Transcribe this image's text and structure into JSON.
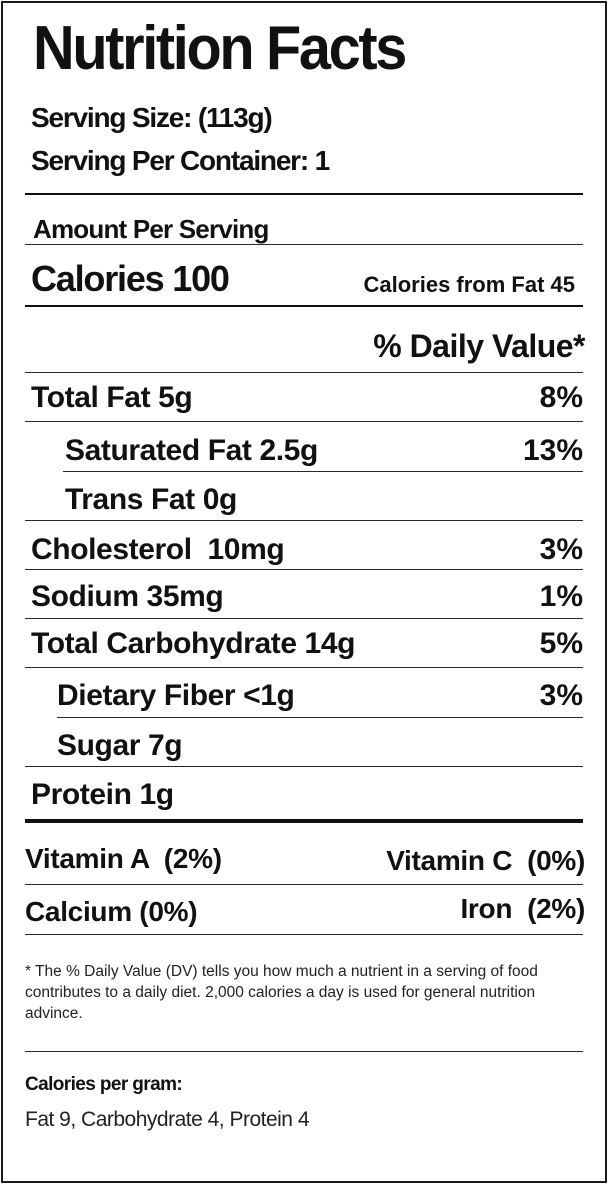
{
  "label": {
    "title": "Nutrition Facts",
    "serving_size": "Serving Size: (113g)",
    "servings_per_container": "Serving Per Container: 1",
    "amount_per_serving": "Amount Per Serving",
    "calories": "Calories 100",
    "calories_from_fat": "Calories from Fat 45",
    "daily_value_header": "% Daily Value*",
    "nutrients": [
      {
        "name": "Total Fat 5g",
        "dv": "8%"
      },
      {
        "name": "Saturated Fat 2.5g",
        "dv": "13%"
      },
      {
        "name": "Trans Fat 0g",
        "dv": ""
      },
      {
        "name": "Cholesterol  10mg",
        "dv": "3%"
      },
      {
        "name": "Sodium 35mg",
        "dv": "1%"
      },
      {
        "name": "Total Carbohydrate 14g",
        "dv": "5%"
      },
      {
        "name": "Dietary Fiber <1g",
        "dv": "3%"
      },
      {
        "name": "Sugar 7g",
        "dv": ""
      },
      {
        "name": "Protein 1g",
        "dv": ""
      }
    ],
    "vitamins": {
      "vitamin_a": "Vitamin A  (2%)",
      "vitamin_c": "Vitamin C  (0%)",
      "calcium": "Calcium (0%)",
      "iron": "Iron  (2%)"
    },
    "footnote": "* The % Daily Value (DV) tells you how much a nutrient in a serving of food contributes to a daily diet. 2,000 calories a day is used for general nutrition advince.",
    "calories_per_gram_heading": "Calories per gram:",
    "calories_per_gram": "Fat 9, Carbohydrate 4, Protein 4"
  }
}
